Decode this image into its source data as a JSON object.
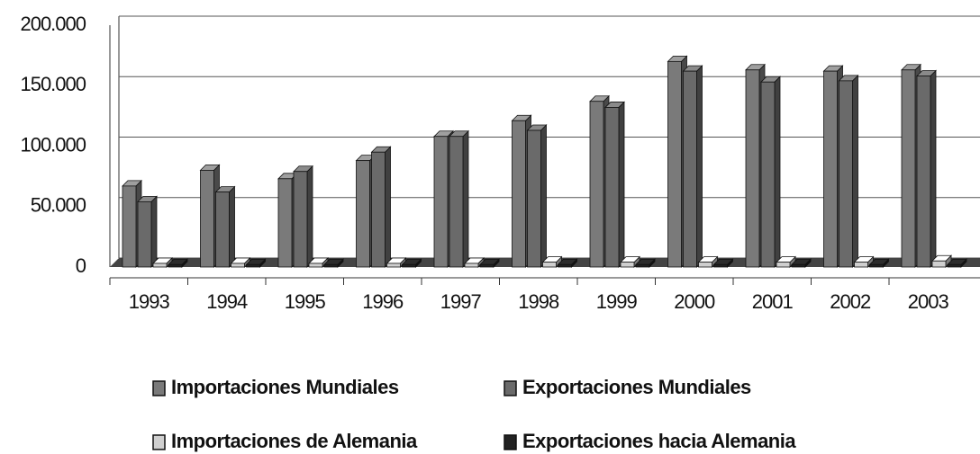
{
  "chart_data": {
    "type": "bar3d",
    "categories": [
      "1993",
      "1994",
      "1995",
      "1996",
      "1997",
      "1998",
      "1999",
      "2000",
      "2001",
      "2002",
      "2003"
    ],
    "series": [
      {
        "name": "Importaciones Mundiales",
        "color": "#7a7a7a",
        "values": [
          67000,
          80000,
          73000,
          88000,
          108000,
          121000,
          137000,
          170000,
          163000,
          162000,
          163000
        ]
      },
      {
        "name": "Exportaciones Mundiales",
        "color": "#6a6a6a",
        "values": [
          54000,
          62000,
          79000,
          95000,
          108000,
          113000,
          132000,
          162000,
          153000,
          154000,
          158000
        ]
      },
      {
        "name": "Importaciones de Alemania",
        "color": "#cfcfcf",
        "values": [
          3000,
          3000,
          3000,
          3000,
          3000,
          4000,
          4000,
          4000,
          4000,
          4000,
          5000
        ]
      },
      {
        "name": "Exportaciones hacia Alemania",
        "color": "#222222",
        "values": [
          2000,
          2000,
          2000,
          2000,
          2000,
          2000,
          2000,
          2000,
          2000,
          2000,
          2000
        ]
      }
    ],
    "ylim": [
      0,
      200000
    ],
    "yticks": [
      0,
      {
        "value": 50000,
        "label": "50.000"
      },
      {
        "value": 100000,
        "label": "100.000"
      },
      {
        "value": 150000,
        "label": "150.000"
      },
      {
        "value": 200000,
        "label": "200.000"
      }
    ],
    "grid": true,
    "legend": "bottom"
  }
}
